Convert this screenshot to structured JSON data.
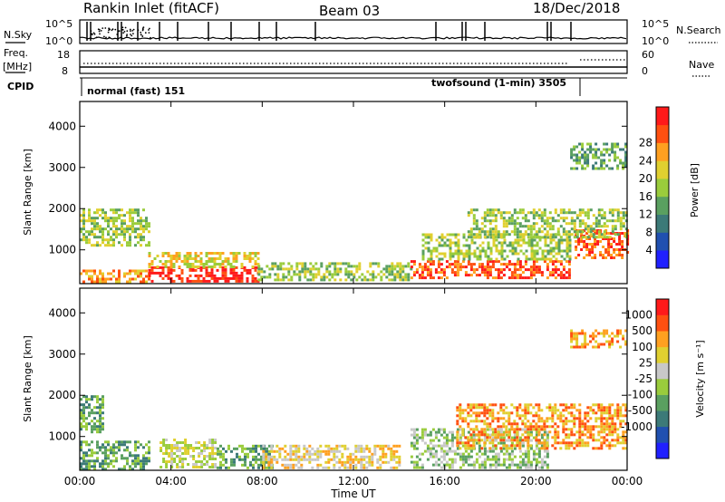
{
  "header": {
    "title": "Rankin Inlet (fitACF)",
    "beam": "Beam 03",
    "date": "18/Dec/2018"
  },
  "aux_panels": {
    "nsky_label": "N.Sky",
    "nsky_ticks": [
      "10^5",
      "10^0"
    ],
    "nsearch_label": "N.Search",
    "nsearch_ticks": [
      "10^5",
      "10^0"
    ],
    "freq_label_1": "Freq.",
    "freq_label_2": "[MHz]",
    "freq_ticks": [
      "18",
      "8"
    ],
    "nave_label": "Nave",
    "nave_ticks": [
      "60",
      "0"
    ],
    "cpid_label": "CPID",
    "cpid_modes": [
      {
        "text": "normal (fast) 151",
        "start_hour": 0.0
      },
      {
        "text": "twofsound (1-min) 3505",
        "start_hour": 21.8
      }
    ]
  },
  "chart_data": [
    {
      "type": "heatmap",
      "quantity": "Power",
      "ylabel": "Slant Range [km]",
      "xlabel": "",
      "x_unit": "hours UT",
      "xlim": [
        0,
        24
      ],
      "ylim": [
        180,
        4600
      ],
      "yticks": [
        "1000",
        "2000",
        "3000",
        "4000"
      ],
      "colorbar": {
        "label": "Power [dB]",
        "ticks": [
          "4",
          "8",
          "12",
          "16",
          "20",
          "24",
          "28"
        ],
        "colors": [
          "#2020ff",
          "#2050b0",
          "#3c7a78",
          "#5aa060",
          "#9acc3c",
          "#e0d030",
          "#ffa020",
          "#ff5010",
          "#ff1a1a"
        ]
      },
      "echo_regions": [
        {
          "t0": 0.0,
          "t1": 3.0,
          "r0": 240,
          "r1": 520,
          "level": 6
        },
        {
          "t0": 3.0,
          "t1": 7.8,
          "r0": 240,
          "r1": 600,
          "level": 8
        },
        {
          "t0": 3.0,
          "t1": 7.8,
          "r0": 600,
          "r1": 950,
          "level": 5
        },
        {
          "t0": 7.8,
          "t1": 14.5,
          "r0": 240,
          "r1": 700,
          "level": 4
        },
        {
          "t0": 14.5,
          "t1": 21.5,
          "r0": 300,
          "r1": 750,
          "level": 7
        },
        {
          "t0": 15.0,
          "t1": 21.5,
          "r0": 750,
          "r1": 1400,
          "level": 4
        },
        {
          "t0": 21.7,
          "t1": 24.0,
          "r0": 800,
          "r1": 1500,
          "level": 7
        },
        {
          "t0": 0.0,
          "t1": 3.0,
          "r0": 1100,
          "r1": 2000,
          "level": 4
        },
        {
          "t0": 17.0,
          "t1": 24.0,
          "r0": 1300,
          "r1": 2000,
          "level": 4
        },
        {
          "t0": 21.5,
          "t1": 24.0,
          "r0": 3000,
          "r1": 3600,
          "level": 3
        }
      ]
    },
    {
      "type": "heatmap",
      "quantity": "Velocity",
      "ylabel": "Slant Range [km]",
      "xlabel": "Time UT",
      "x_unit": "hours UT",
      "xlim": [
        0,
        24
      ],
      "ylim": [
        180,
        4600
      ],
      "yticks": [
        "1000",
        "2000",
        "3000",
        "4000"
      ],
      "xticks": [
        "00:00",
        "04:00",
        "08:00",
        "12:00",
        "16:00",
        "20:00",
        "00:00"
      ],
      "colorbar": {
        "label": "Velocity [m s⁻¹]",
        "ticks": [
          "1000",
          "500",
          "100",
          "25",
          "-25",
          "-100",
          "-500",
          "-1000"
        ],
        "colors": [
          "#2020ff",
          "#2050b0",
          "#3c7a78",
          "#5aa060",
          "#9acc3c",
          "#c8c8c8",
          "#e0d030",
          "#ffa020",
          "#ff5010",
          "#ff1a1a"
        ]
      },
      "echo_regions": [
        {
          "t0": 0.0,
          "t1": 1.0,
          "r0": 1100,
          "r1": 2000,
          "level": 3
        },
        {
          "t0": 0.0,
          "t1": 3.0,
          "r0": 240,
          "r1": 900,
          "level": 3
        },
        {
          "t0": 3.5,
          "t1": 6.0,
          "r0": 240,
          "r1": 950,
          "level": 5
        },
        {
          "t0": 6.0,
          "t1": 8.5,
          "r0": 240,
          "r1": 800,
          "level": 3
        },
        {
          "t0": 8.0,
          "t1": 14.0,
          "r0": 240,
          "r1": 800,
          "level": 6
        },
        {
          "t0": 14.5,
          "t1": 20.5,
          "r0": 240,
          "r1": 1200,
          "level": 4
        },
        {
          "t0": 16.5,
          "t1": 24.0,
          "r0": 700,
          "r1": 1800,
          "level": 7
        },
        {
          "t0": 21.5,
          "t1": 24.0,
          "r0": 3200,
          "r1": 3600,
          "level": 7
        }
      ]
    }
  ]
}
